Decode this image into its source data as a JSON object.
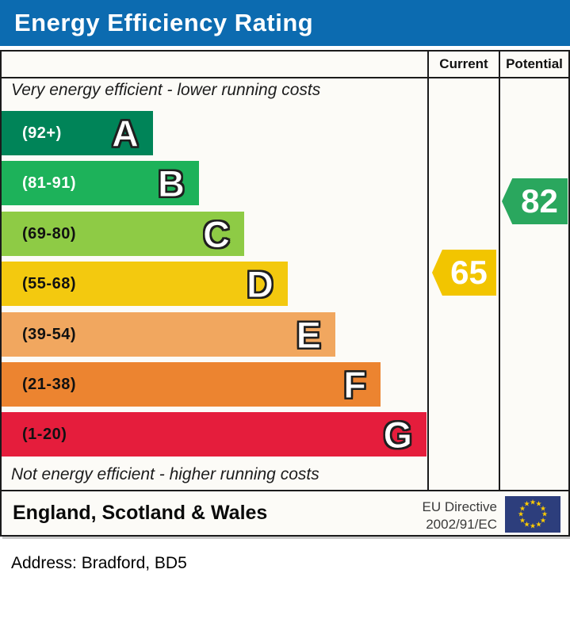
{
  "title": "Energy Efficiency Rating",
  "colors": {
    "title_bar": "#0c6bb0",
    "table_background": "#fcfbf7",
    "border": "#1b1b1b"
  },
  "table": {
    "col_current": "Current",
    "col_potential": "Potential",
    "top_note": "Very energy efficient - lower running costs",
    "bottom_note": "Not energy efficient - higher running costs"
  },
  "scale": {
    "bands": [
      {
        "letter": "A",
        "range": "(92+)",
        "color": "#008458",
        "label_color": "#ffffff"
      },
      {
        "letter": "B",
        "range": "(81-91)",
        "color": "#1db25a",
        "label_color": "#ffffff"
      },
      {
        "letter": "C",
        "range": "(69-80)",
        "color": "#8ecb45",
        "label_color": "#111111"
      },
      {
        "letter": "D",
        "range": "(55-68)",
        "color": "#f3c90f",
        "label_color": "#111111"
      },
      {
        "letter": "E",
        "range": "(39-54)",
        "color": "#f1a75f",
        "label_color": "#111111"
      },
      {
        "letter": "F",
        "range": "(21-38)",
        "color": "#ec8430",
        "label_color": "#111111"
      },
      {
        "letter": "G",
        "range": "(1-20)",
        "color": "#e51d3c",
        "label_color": "#111111"
      }
    ]
  },
  "ratings": {
    "current": {
      "value": "65",
      "color": "#f2c500"
    },
    "potential": {
      "value": "82",
      "color": "#2aa75e"
    }
  },
  "footer": {
    "region": "England, Scotland & Wales",
    "directive_line1": "EU Directive",
    "directive_line2": "2002/91/EC",
    "flag_blue": "#2d3e7c",
    "flag_star": "#ffcc00"
  },
  "address_line": "Address: Bradford, BD5",
  "chart_data": {
    "type": "bar",
    "title": "Energy Efficiency Rating",
    "categories": [
      "A",
      "B",
      "C",
      "D",
      "E",
      "F",
      "G"
    ],
    "band_ranges": [
      "92+",
      "81-91",
      "69-80",
      "55-68",
      "39-54",
      "21-38",
      "1-20"
    ],
    "band_colors": [
      "#008458",
      "#1db25a",
      "#8ecb45",
      "#f3c90f",
      "#f1a75f",
      "#ec8430",
      "#e51d3c"
    ],
    "bar_lengths_relative": [
      1,
      2,
      3,
      4,
      5,
      6,
      7
    ],
    "columns": [
      "Current",
      "Potential"
    ],
    "values": {
      "current": 65,
      "potential": 82
    },
    "current_band": "D",
    "potential_band": "B",
    "top_note": "Very energy efficient - lower running costs",
    "bottom_note": "Not energy efficient - higher running costs",
    "region": "England, Scotland & Wales",
    "directive": "EU Directive 2002/91/EC",
    "address": "Bradford, BD5"
  }
}
